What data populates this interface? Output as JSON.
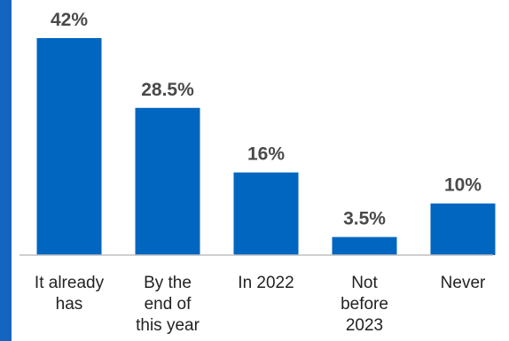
{
  "chart_data": {
    "type": "bar",
    "categories": [
      [
        "It already",
        "has"
      ],
      [
        "By the",
        "end of",
        "this year"
      ],
      [
        "In 2022"
      ],
      [
        "Not",
        "before",
        "2023"
      ],
      [
        "Never"
      ]
    ],
    "values": [
      42,
      28.5,
      16,
      3.5,
      10
    ],
    "data_labels": [
      "42%",
      "28.5%",
      "16%",
      "3.5%",
      "10%"
    ],
    "ylim": [
      0,
      42
    ],
    "grid": false,
    "legend": "none",
    "colors": {
      "bar": "#0066c0",
      "left_accent": "#1565c0",
      "axis": "#bfbfbf",
      "label": "#4a4a4a"
    }
  }
}
